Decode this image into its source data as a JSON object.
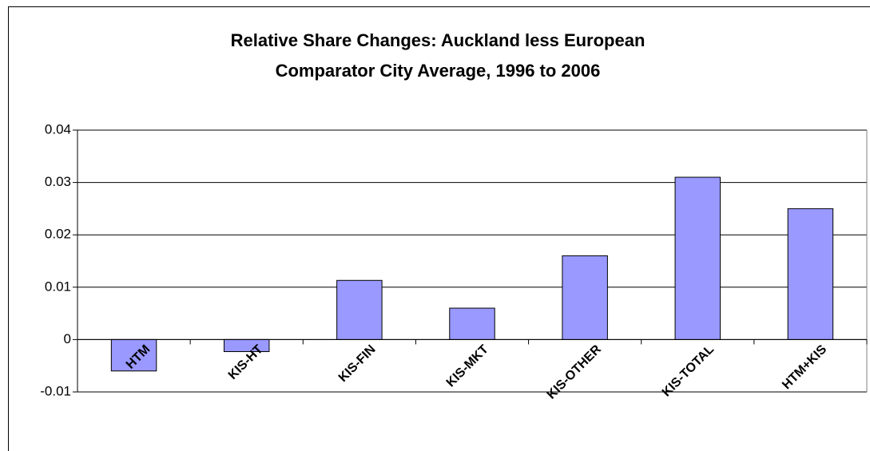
{
  "chart_data": {
    "type": "bar",
    "title": [
      "Relative Share Changes: Auckland less European",
      "Comparator City Average, 1996 to 2006"
    ],
    "categories": [
      "HTM",
      "KIS-HT",
      "KIS-FIN",
      "KIS-MKT",
      "KIS-OTHER",
      "KIS-TOTAL",
      "HTM+KIS"
    ],
    "values": [
      -0.006,
      -0.0023,
      0.0113,
      0.006,
      0.016,
      0.031,
      0.025
    ],
    "color": "#9999ff",
    "ylim": [
      -0.01,
      0.04
    ],
    "yticks": [
      -0.01,
      0,
      0.01,
      0.02,
      0.03,
      0.04
    ],
    "grid": true
  }
}
